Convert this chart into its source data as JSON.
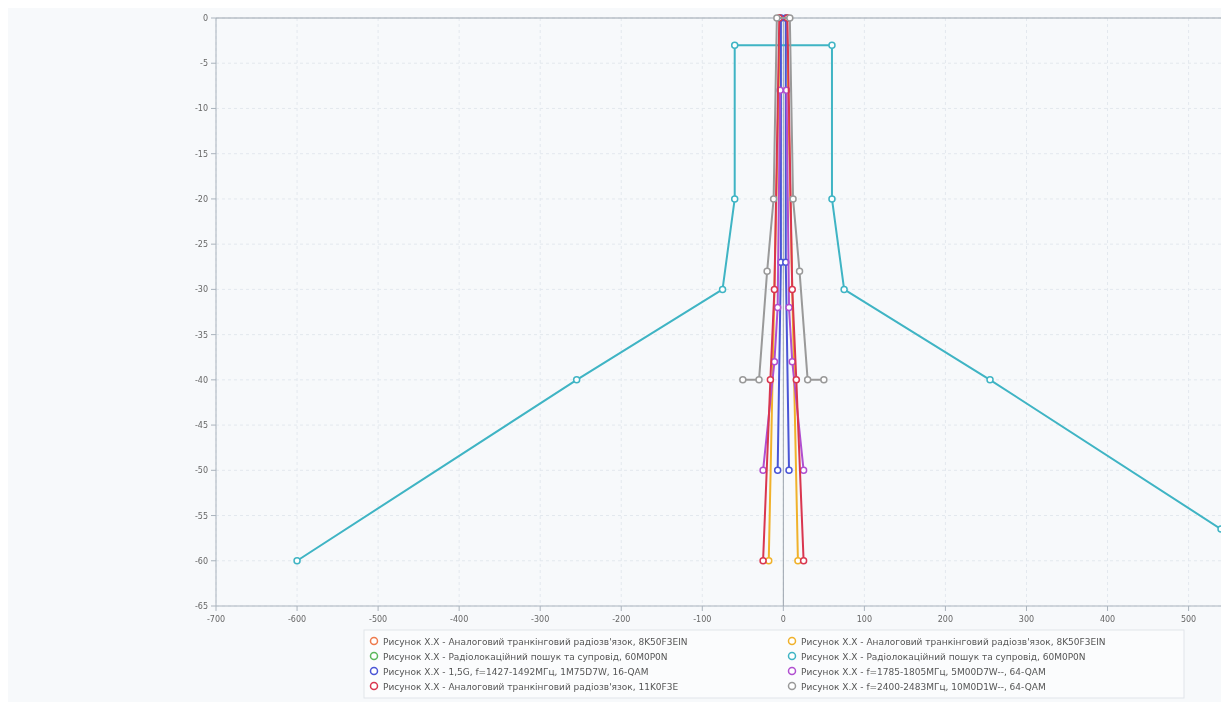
{
  "chart_data": {
    "type": "line",
    "marker": "circle",
    "grid": true,
    "legend": "bottom",
    "xlim": [
      -700,
      540
    ],
    "ylim": [
      -65,
      0
    ],
    "xticks": [
      -700,
      -600,
      -500,
      -400,
      -300,
      -200,
      -100,
      0,
      100,
      200,
      300,
      400,
      500
    ],
    "yticks": [
      0,
      -5,
      -10,
      -15,
      -20,
      -25,
      -30,
      -35,
      -40,
      -45,
      -50,
      -55,
      -60,
      -65
    ],
    "series": [
      {
        "name": "Рисунок X.X - Аналоговий транкінговий радіозв'язок, 8K50F3EIN",
        "color": "#ee7a4c",
        "values": [
          null
        ]
      },
      {
        "name": "Рисунок X.X - Аналоговий транкінговий радіозв'язок, 8K50F3EIN",
        "color": "#f0b12a",
        "x": [
          -18,
          -4,
          4,
          18
        ],
        "values": [
          -60,
          0,
          0,
          -60
        ]
      },
      {
        "name": "Рисунок X.X - Радіолокаційний пошук та супровід, 60M0P0N",
        "color": "#5cb85c",
        "values": [
          null
        ]
      },
      {
        "name": "Рисунок X.X - Радіолокаційний пошук та супровід, 60M0P0N",
        "color": "#3fb4c4",
        "x": [
          -600,
          -255,
          -75,
          -60,
          -60,
          60,
          60,
          75,
          255,
          540
        ],
        "values": [
          -60,
          -40,
          -30,
          -20,
          -3,
          -3,
          -20,
          -30,
          -40,
          -56.5
        ]
      },
      {
        "name": "Рисунок X.X - 1,5G, f=1427-1492МГц, 1M75D7W, 16-QAM",
        "color": "#4a55d6",
        "x": [
          -7,
          -3,
          -3,
          3,
          3,
          7
        ],
        "values": [
          -50,
          -27,
          0,
          0,
          -27,
          -50
        ]
      },
      {
        "name": "Рисунок X.X - f=1785-1805МГц, 5M00D7W--, 64-QAM",
        "color": "#b04fd0",
        "x": [
          -25,
          -11,
          -7,
          -4,
          4,
          7,
          11,
          25
        ],
        "values": [
          -50,
          -38,
          -32,
          -8,
          -8,
          -32,
          -38,
          -50
        ]
      },
      {
        "name": "Рисунок X.X - Аналоговий транкінговий радіозв'язок, 11K0F3E",
        "color": "#d9364f",
        "x": [
          -25,
          -16,
          -11,
          -5,
          5,
          11,
          16,
          25
        ],
        "values": [
          -60,
          -40,
          -30,
          0,
          0,
          -30,
          -40,
          -60
        ]
      },
      {
        "name": "Рисунок X.X - f=2400-2483МГц, 10M0D1W--, 64-QAM",
        "color": "#999999",
        "x": [
          -50,
          -30,
          -20,
          -12,
          -8,
          8,
          12,
          20,
          30,
          50
        ],
        "values": [
          -40,
          -40,
          -28,
          -20,
          0,
          0,
          -20,
          -28,
          -40,
          -40
        ]
      }
    ]
  }
}
